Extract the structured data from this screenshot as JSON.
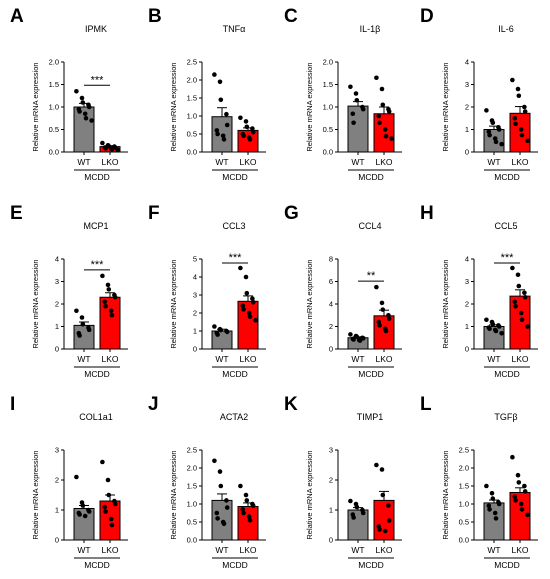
{
  "figure": {
    "colors": {
      "WT": "#808080",
      "LKO": "#ff0000",
      "points": "#000000"
    },
    "categories": [
      "WT",
      "LKO"
    ],
    "group_label": "MCDD",
    "ylabel": "Relative mRNA expression"
  },
  "chart_data": [
    {
      "letter": "A",
      "type": "bar",
      "title": "IPMK",
      "ylabel": "Relative mRNA expression",
      "categories": [
        "WT",
        "LKO"
      ],
      "group": "MCDD",
      "ylim": [
        0,
        2.0
      ],
      "yticks": [
        "0.0",
        "0.5",
        "1.0",
        "1.5",
        "2.0"
      ],
      "means": [
        1.0,
        0.12
      ],
      "sem": [
        0.08,
        0.02
      ],
      "significance": "***",
      "points": [
        [
          1.35,
          1.2,
          1.1,
          1.05,
          1.0,
          0.95,
          0.9,
          0.85,
          0.75,
          0.7
        ],
        [
          0.2,
          0.15,
          0.13,
          0.12,
          0.1,
          0.1,
          0.08,
          0.07,
          0.06,
          0.05
        ]
      ]
    },
    {
      "letter": "B",
      "type": "bar",
      "title": "TNFα",
      "ylabel": "Relative mRNA expression",
      "categories": [
        "WT",
        "LKO"
      ],
      "group": "MCDD",
      "ylim": [
        0,
        2.5
      ],
      "yticks": [
        "0.0",
        "0.5",
        "1.0",
        "1.5",
        "2.0",
        "2.5"
      ],
      "means": [
        0.98,
        0.6
      ],
      "sem": [
        0.25,
        0.07
      ],
      "significance": "",
      "points": [
        [
          2.15,
          1.95,
          1.45,
          1.05,
          0.75,
          0.6,
          0.5,
          0.45,
          0.35
        ],
        [
          0.95,
          0.85,
          0.7,
          0.65,
          0.55,
          0.5,
          0.45,
          0.4,
          0.35
        ]
      ]
    },
    {
      "letter": "C",
      "type": "bar",
      "title": "IL-1β",
      "ylabel": "Relative mRNA expression",
      "categories": [
        "WT",
        "LKO"
      ],
      "group": "MCDD",
      "ylim": [
        0,
        2.0
      ],
      "yticks": [
        "0.0",
        "0.5",
        "1.0",
        "1.5",
        "2.0"
      ],
      "means": [
        1.02,
        0.85
      ],
      "sem": [
        0.1,
        0.15
      ],
      "significance": "",
      "points": [
        [
          1.45,
          1.3,
          1.15,
          1.0,
          0.95,
          0.85,
          0.65
        ],
        [
          1.65,
          1.4,
          1.05,
          0.95,
          0.9,
          0.8,
          0.65,
          0.5,
          0.35,
          0.3
        ]
      ]
    },
    {
      "letter": "D",
      "type": "bar",
      "title": "IL-6",
      "ylabel": "Relative mRNA expression",
      "categories": [
        "WT",
        "LKO"
      ],
      "group": "MCDD",
      "ylim": [
        0,
        4
      ],
      "yticks": [
        "0",
        "1",
        "2",
        "3",
        "4"
      ],
      "means": [
        1.0,
        1.72
      ],
      "sem": [
        0.15,
        0.3
      ],
      "significance": "",
      "points": [
        [
          1.85,
          1.4,
          1.3,
          1.1,
          1.0,
          0.9,
          0.75,
          0.6,
          0.45,
          0.35
        ],
        [
          3.2,
          2.8,
          2.5,
          2.0,
          1.8,
          1.5,
          1.25,
          1.0,
          0.75,
          0.5
        ]
      ]
    },
    {
      "letter": "E",
      "type": "bar",
      "title": "MCP1",
      "ylabel": "Relative mRNA expression",
      "categories": [
        "WT",
        "LKO"
      ],
      "group": "MCDD",
      "ylim": [
        0,
        4
      ],
      "yticks": [
        "0",
        "1",
        "2",
        "3",
        "4"
      ],
      "means": [
        1.05,
        2.3
      ],
      "sem": [
        0.15,
        0.2
      ],
      "significance": "***",
      "points": [
        [
          1.7,
          1.4,
          1.1,
          0.95,
          0.85,
          0.7,
          0.6
        ],
        [
          3.25,
          2.85,
          2.65,
          2.4,
          2.3,
          2.1,
          1.9,
          1.7,
          1.5
        ]
      ]
    },
    {
      "letter": "F",
      "type": "bar",
      "title": "CCL3",
      "ylabel": "Relative mRNA expression",
      "categories": [
        "WT",
        "LKO"
      ],
      "group": "MCDD",
      "ylim": [
        0,
        5
      ],
      "yticks": [
        "0",
        "1",
        "2",
        "3",
        "4",
        "5"
      ],
      "means": [
        1.0,
        2.65
      ],
      "sem": [
        0.1,
        0.3
      ],
      "significance": "***",
      "points": [
        [
          1.25,
          1.1,
          1.05,
          1.0,
          0.95,
          0.9,
          0.8
        ],
        [
          4.5,
          4.0,
          3.1,
          2.8,
          2.6,
          2.4,
          2.2,
          2.0,
          1.8,
          1.6
        ]
      ]
    },
    {
      "letter": "G",
      "type": "bar",
      "title": "CCL4",
      "ylabel": "Relative mRNA expression",
      "categories": [
        "WT",
        "LKO"
      ],
      "group": "MCDD",
      "ylim": [
        0,
        8
      ],
      "yticks": [
        "0",
        "2",
        "4",
        "6",
        "8"
      ],
      "means": [
        1.0,
        2.95
      ],
      "sem": [
        0.08,
        0.5
      ],
      "significance": "**",
      "points": [
        [
          1.3,
          1.15,
          1.1,
          1.0,
          0.95,
          0.9,
          0.85,
          0.8,
          0.75
        ],
        [
          5.5,
          4.1,
          3.5,
          3.0,
          2.7,
          2.4,
          2.1,
          1.8,
          1.6
        ]
      ]
    },
    {
      "letter": "H",
      "type": "bar",
      "title": "CCL5",
      "ylabel": "Relative mRNA expression",
      "categories": [
        "WT",
        "LKO"
      ],
      "group": "MCDD",
      "ylim": [
        0,
        4
      ],
      "yticks": [
        "0",
        "1",
        "2",
        "3",
        "4"
      ],
      "means": [
        1.0,
        2.35
      ],
      "sem": [
        0.07,
        0.28
      ],
      "significance": "***",
      "points": [
        [
          1.3,
          1.2,
          1.1,
          1.05,
          1.0,
          0.95,
          0.9,
          0.85,
          0.8,
          0.7
        ],
        [
          3.6,
          3.3,
          2.8,
          2.5,
          2.3,
          2.1,
          1.9,
          1.6,
          1.3,
          1.0
        ]
      ]
    },
    {
      "letter": "I",
      "type": "bar",
      "title": "COL1a1",
      "ylabel": "Relative mRNA expression",
      "categories": [
        "WT",
        "LKO"
      ],
      "group": "MCDD",
      "ylim": [
        0,
        3
      ],
      "yticks": [
        "0",
        "1",
        "2",
        "3"
      ],
      "means": [
        1.05,
        1.3
      ],
      "sem": [
        0.1,
        0.2
      ],
      "significance": "",
      "points": [
        [
          2.1,
          1.25,
          1.15,
          1.0,
          0.95,
          0.9,
          0.85,
          0.8
        ],
        [
          2.6,
          2.0,
          1.5,
          1.3,
          1.2,
          1.1,
          0.95,
          0.7,
          0.5
        ]
      ]
    },
    {
      "letter": "J",
      "type": "bar",
      "title": "ACTA2",
      "ylabel": "Relative mRNA expression",
      "categories": [
        "WT",
        "LKO"
      ],
      "group": "MCDD",
      "ylim": [
        0,
        2.5
      ],
      "yticks": [
        "0.0",
        "0.5",
        "1.0",
        "1.5",
        "2.0",
        "2.5"
      ],
      "means": [
        1.1,
        0.93
      ],
      "sem": [
        0.18,
        0.1
      ],
      "significance": "",
      "points": [
        [
          2.2,
          1.9,
          1.5,
          1.1,
          0.9,
          0.75,
          0.6,
          0.5,
          0.45
        ],
        [
          1.5,
          1.25,
          1.1,
          1.0,
          0.95,
          0.85,
          0.75,
          0.65,
          0.55
        ]
      ]
    },
    {
      "letter": "K",
      "type": "bar",
      "title": "TIMP1",
      "ylabel": "Relative mRNA expression",
      "categories": [
        "WT",
        "LKO"
      ],
      "group": "MCDD",
      "ylim": [
        0,
        3
      ],
      "yticks": [
        "0",
        "1",
        "2",
        "3"
      ],
      "means": [
        1.0,
        1.32
      ],
      "sem": [
        0.08,
        0.3
      ],
      "significance": "",
      "points": [
        [
          1.3,
          1.2,
          1.1,
          1.0,
          0.9,
          0.85,
          0.75
        ],
        [
          2.5,
          2.35,
          1.5,
          1.15,
          0.65,
          0.45,
          0.35,
          0.3
        ]
      ]
    },
    {
      "letter": "L",
      "type": "bar",
      "title": "TGFβ",
      "ylabel": "Relative mRNA expression",
      "categories": [
        "WT",
        "LKO"
      ],
      "group": "MCDD",
      "ylim": [
        0,
        2.5
      ],
      "yticks": [
        "0.0",
        "0.5",
        "1.0",
        "1.5",
        "2.0",
        "2.5"
      ],
      "means": [
        1.03,
        1.32
      ],
      "sem": [
        0.08,
        0.13
      ],
      "significance": "",
      "points": [
        [
          1.5,
          1.3,
          1.15,
          1.05,
          1.0,
          0.95,
          0.85,
          0.75,
          0.6
        ],
        [
          2.3,
          1.8,
          1.6,
          1.5,
          1.35,
          1.2,
          1.1,
          1.0,
          0.85,
          0.7
        ]
      ]
    }
  ]
}
